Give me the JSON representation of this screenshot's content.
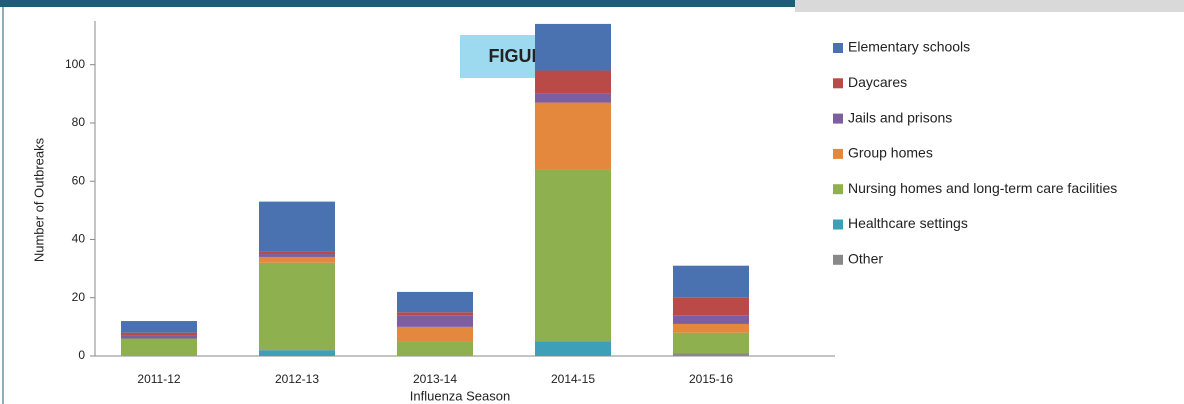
{
  "chart_data": {
    "type": "stacked-bar",
    "figure_label": "FIGURE 8",
    "x_label": "Influenza Season",
    "y_label": "Number of Outbreaks",
    "categories": [
      "2011-12",
      "2012-13",
      "2013-14",
      "2014-15",
      "2015-16"
    ],
    "series": [
      {
        "name": "Elementary schools",
        "color": "#4a72b0",
        "values": [
          4,
          17,
          7,
          16,
          11
        ]
      },
      {
        "name": "Daycares",
        "color": "#b94a48",
        "values": [
          1,
          1,
          1,
          8,
          6
        ]
      },
      {
        "name": "Jails and prisons",
        "color": "#7c5fa0",
        "values": [
          1,
          1,
          4,
          3,
          3
        ]
      },
      {
        "name": "Group homes",
        "color": "#e3883c",
        "values": [
          0,
          2,
          5,
          23,
          3
        ]
      },
      {
        "name": "Nursing homes and long-term care facilities",
        "color": "#8fb04f",
        "values": [
          6,
          30,
          5,
          59,
          7
        ]
      },
      {
        "name": "Healthcare settings",
        "color": "#3e9fb8",
        "values": [
          0,
          2,
          0,
          5,
          0
        ]
      },
      {
        "name": "Other",
        "color": "#888888",
        "values": [
          0,
          0,
          0,
          0,
          1
        ]
      }
    ],
    "ylim": [
      0,
      115
    ],
    "yticks": [
      0,
      20,
      40,
      60,
      80,
      100
    ]
  }
}
